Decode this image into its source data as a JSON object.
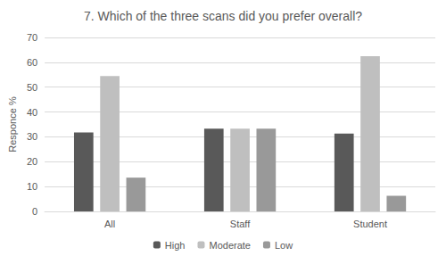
{
  "chart_data": {
    "type": "bar",
    "title": "7. Which of the three scans did you prefer overall?",
    "y_label": "Responce %",
    "categories": [
      "All",
      "Staff",
      "Student"
    ],
    "series": [
      {
        "name": "High",
        "color": "#595959",
        "values": [
          31.8,
          33.3,
          31.3
        ]
      },
      {
        "name": "Moderate",
        "color": "#bfbfbf",
        "values": [
          54.5,
          33.3,
          62.5
        ]
      },
      {
        "name": "Low",
        "color": "#999999",
        "values": [
          13.6,
          33.3,
          6.3
        ]
      }
    ],
    "ylim": [
      0,
      70
    ],
    "yticks": [
      0,
      10,
      20,
      30,
      40,
      50,
      60,
      70
    ],
    "grid": true,
    "legend": "bottom"
  }
}
